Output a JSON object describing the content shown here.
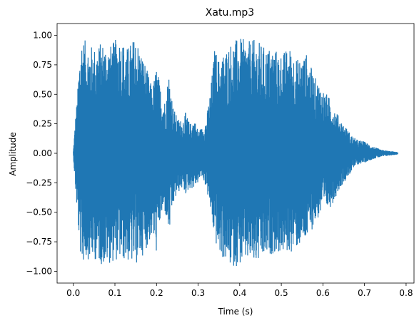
{
  "chart_data": {
    "type": "line",
    "title": "Xatu.mp3",
    "xlabel": "Time (s)",
    "ylabel": "Amplitude",
    "xlim": [
      -0.039,
      0.819
    ],
    "ylim": [
      -1.1,
      1.1
    ],
    "x_ticks": [
      0.0,
      0.1,
      0.2,
      0.3,
      0.4,
      0.5,
      0.6,
      0.7,
      0.8
    ],
    "x_tick_labels": [
      "0.0",
      "0.1",
      "0.2",
      "0.3",
      "0.4",
      "0.5",
      "0.6",
      "0.7",
      "0.8"
    ],
    "y_ticks": [
      -1.0,
      -0.75,
      -0.5,
      -0.25,
      0.0,
      0.25,
      0.5,
      0.75,
      1.0
    ],
    "y_tick_labels": [
      "−1.00",
      "−0.75",
      "−0.50",
      "−0.25",
      "0.00",
      "0.25",
      "0.50",
      "0.75",
      "1.00"
    ],
    "grid": false,
    "series": [
      {
        "color": "#1f77b4",
        "duration_s": 0.78,
        "envelope": {
          "t": [
            0.0,
            0.005,
            0.01,
            0.015,
            0.02,
            0.03,
            0.05,
            0.07,
            0.09,
            0.11,
            0.13,
            0.15,
            0.17,
            0.19,
            0.2,
            0.21,
            0.22,
            0.23,
            0.24,
            0.25,
            0.26,
            0.27,
            0.28,
            0.29,
            0.3,
            0.31,
            0.32,
            0.33,
            0.34,
            0.35,
            0.36,
            0.38,
            0.4,
            0.42,
            0.44,
            0.46,
            0.48,
            0.5,
            0.52,
            0.54,
            0.56,
            0.58,
            0.6,
            0.62,
            0.64,
            0.66,
            0.67,
            0.68,
            0.7,
            0.72,
            0.74,
            0.76,
            0.78
          ],
          "upper": [
            0.02,
            0.3,
            0.5,
            0.85,
            1.0,
            0.95,
            0.9,
            0.95,
            0.92,
            1.0,
            0.9,
            1.0,
            0.8,
            0.55,
            0.75,
            0.55,
            0.45,
            0.7,
            0.4,
            0.3,
            0.28,
            0.35,
            0.25,
            0.3,
            0.2,
            0.22,
            0.3,
            0.55,
            0.9,
            0.8,
            0.85,
            0.95,
            0.98,
            0.95,
            0.97,
            0.9,
            0.9,
            0.85,
            0.9,
            0.8,
            0.85,
            0.65,
            0.55,
            0.45,
            0.3,
            0.2,
            0.15,
            0.12,
            0.1,
            0.06,
            0.03,
            0.02,
            0.01
          ],
          "lower": [
            -0.02,
            -0.3,
            -0.55,
            -0.8,
            -0.95,
            -0.9,
            -0.9,
            -0.95,
            -0.93,
            -0.9,
            -0.92,
            -0.95,
            -0.85,
            -0.7,
            -0.85,
            -0.55,
            -0.5,
            -0.7,
            -0.45,
            -0.35,
            -0.3,
            -0.35,
            -0.3,
            -0.3,
            -0.25,
            -0.2,
            -0.3,
            -0.5,
            -0.75,
            -0.85,
            -0.9,
            -0.97,
            -0.95,
            -0.92,
            -0.95,
            -0.9,
            -0.85,
            -0.85,
            -0.85,
            -0.8,
            -0.75,
            -0.6,
            -0.5,
            -0.45,
            -0.3,
            -0.2,
            -0.15,
            -0.1,
            -0.08,
            -0.05,
            -0.03,
            -0.02,
            -0.01
          ]
        }
      }
    ]
  }
}
